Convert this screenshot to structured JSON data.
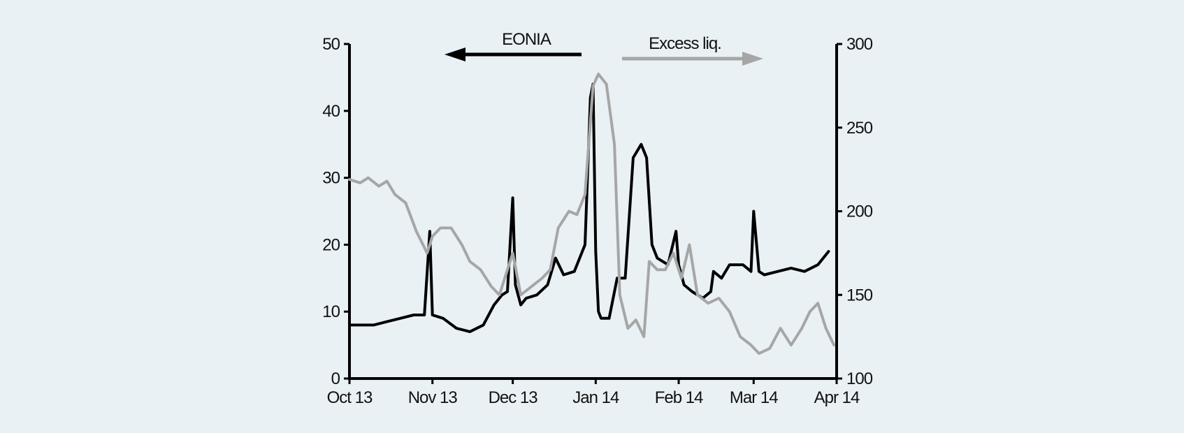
{
  "chart_data": {
    "type": "line",
    "x_tick_labels": [
      "Oct 13",
      "Nov 13",
      "Dec 13",
      "Jan 14",
      "Feb 14",
      "Mar 14",
      "Apr 14"
    ],
    "x_range": [
      "2013-10-01",
      "2014-04-01"
    ],
    "left_axis": {
      "ylim": [
        0,
        50
      ],
      "ticks": [
        "0",
        "10",
        "20",
        "30",
        "40",
        "50"
      ]
    },
    "right_axis": {
      "ylim": [
        100,
        300
      ],
      "ticks": [
        "100",
        "150",
        "200",
        "250",
        "300"
      ]
    },
    "legend": [
      {
        "label": "EONIA",
        "axis": "left",
        "color": "#000000",
        "arrow": "left"
      },
      {
        "label": "Excess liq.",
        "axis": "right",
        "color": "#a6a6a6",
        "arrow": "right"
      }
    ],
    "series": [
      {
        "name": "EONIA",
        "axis": "left",
        "color": "#000000",
        "x": [
          "2013-10-01",
          "2013-10-07",
          "2013-10-10",
          "2013-10-15",
          "2013-10-20",
          "2013-10-25",
          "2013-10-29",
          "2013-10-31",
          "2013-11-01",
          "2013-11-05",
          "2013-11-10",
          "2013-11-15",
          "2013-11-20",
          "2013-11-24",
          "2013-11-27",
          "2013-11-29",
          "2013-12-01",
          "2013-12-02",
          "2013-12-04",
          "2013-12-06",
          "2013-12-10",
          "2013-12-14",
          "2013-12-17",
          "2013-12-20",
          "2013-12-24",
          "2013-12-28",
          "2013-12-30",
          "2013-12-31",
          "2014-01-01",
          "2014-01-02",
          "2014-01-03",
          "2014-01-06",
          "2014-01-09",
          "2014-01-12",
          "2014-01-15",
          "2014-01-18",
          "2014-01-20",
          "2014-01-22",
          "2014-01-24",
          "2014-01-28",
          "2014-01-31",
          "2014-02-01",
          "2014-02-03",
          "2014-02-06",
          "2014-02-10",
          "2014-02-13",
          "2014-02-14",
          "2014-02-17",
          "2014-02-20",
          "2014-02-25",
          "2014-02-28",
          "2014-03-01",
          "2014-03-03",
          "2014-03-05",
          "2014-03-10",
          "2014-03-15",
          "2014-03-20",
          "2014-03-25",
          "2014-03-29"
        ],
        "values": [
          8,
          8,
          8,
          8.5,
          9,
          9.5,
          9.5,
          22,
          9.5,
          9,
          7.5,
          7,
          8,
          11,
          12.5,
          13,
          27,
          14,
          11,
          12,
          12.5,
          14,
          18,
          15.5,
          16,
          20,
          42,
          44,
          19,
          10,
          9,
          9,
          15,
          15,
          33,
          35,
          33,
          20,
          18,
          17,
          22,
          17,
          14,
          13,
          12,
          13,
          16,
          15,
          17,
          17,
          16,
          25,
          16,
          15.5,
          16,
          16.5,
          16,
          17,
          19
        ]
      },
      {
        "name": "Excess liq.",
        "axis": "right",
        "color": "#a6a6a6",
        "x": [
          "2013-10-01",
          "2013-10-05",
          "2013-10-08",
          "2013-10-12",
          "2013-10-15",
          "2013-10-18",
          "2013-10-22",
          "2013-10-26",
          "2013-10-30",
          "2013-11-01",
          "2013-11-04",
          "2013-11-08",
          "2013-11-12",
          "2013-11-15",
          "2013-11-19",
          "2013-11-23",
          "2013-11-26",
          "2013-11-29",
          "2013-12-01",
          "2013-12-04",
          "2013-12-08",
          "2013-12-12",
          "2013-12-15",
          "2013-12-18",
          "2013-12-22",
          "2013-12-25",
          "2013-12-28",
          "2013-12-31",
          "2014-01-02",
          "2014-01-05",
          "2014-01-08",
          "2014-01-10",
          "2014-01-13",
          "2014-01-16",
          "2014-01-19",
          "2014-01-21",
          "2014-01-24",
          "2014-01-27",
          "2014-01-30",
          "2014-02-02",
          "2014-02-05",
          "2014-02-08",
          "2014-02-12",
          "2014-02-16",
          "2014-02-20",
          "2014-02-24",
          "2014-02-28",
          "2014-03-03",
          "2014-03-07",
          "2014-03-11",
          "2014-03-15",
          "2014-03-19",
          "2014-03-22",
          "2014-03-25",
          "2014-03-28",
          "2014-03-31"
        ],
        "values": [
          219,
          217,
          220,
          215,
          218,
          210,
          205,
          188,
          175,
          185,
          190,
          190,
          180,
          170,
          165,
          155,
          150,
          165,
          175,
          150,
          155,
          160,
          165,
          190,
          200,
          198,
          210,
          275,
          282,
          276,
          240,
          150,
          130,
          135,
          125,
          170,
          165,
          165,
          175,
          160,
          180,
          150,
          145,
          148,
          140,
          125,
          120,
          115,
          118,
          130,
          120,
          130,
          140,
          145,
          130,
          120
        ]
      }
    ]
  }
}
